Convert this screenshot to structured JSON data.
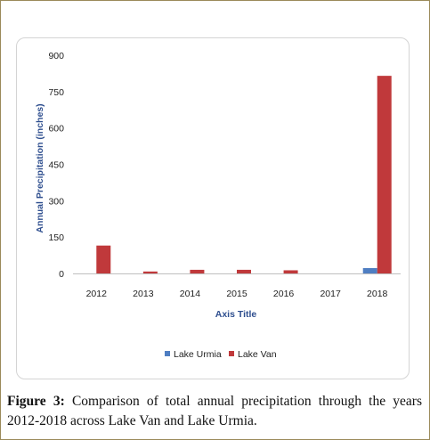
{
  "chart_data": {
    "type": "bar",
    "categories": [
      "2012",
      "2013",
      "2014",
      "2015",
      "2016",
      "2017",
      "2018"
    ],
    "series": [
      {
        "name": "Lake Urmia",
        "color": "#4f7ec2",
        "values": [
          0,
          0,
          0,
          0,
          0,
          0,
          22
        ]
      },
      {
        "name": "Lake Van",
        "color": "#c0393b",
        "values": [
          115,
          8,
          15,
          15,
          13,
          0,
          815
        ]
      }
    ],
    "xlabel": "Axis Title",
    "ylabel": "Annual Precipitation (inches)",
    "ylim": [
      0,
      900
    ],
    "yticks": [
      "900",
      "750",
      "600",
      "450",
      "300",
      "150",
      "0"
    ],
    "grid": false,
    "legend_position": "bottom"
  },
  "caption": {
    "label": "Figure 3:",
    "text": "Comparison of total annual precipitation through the years 2012-2018 across Lake Van and Lake Urmia."
  }
}
